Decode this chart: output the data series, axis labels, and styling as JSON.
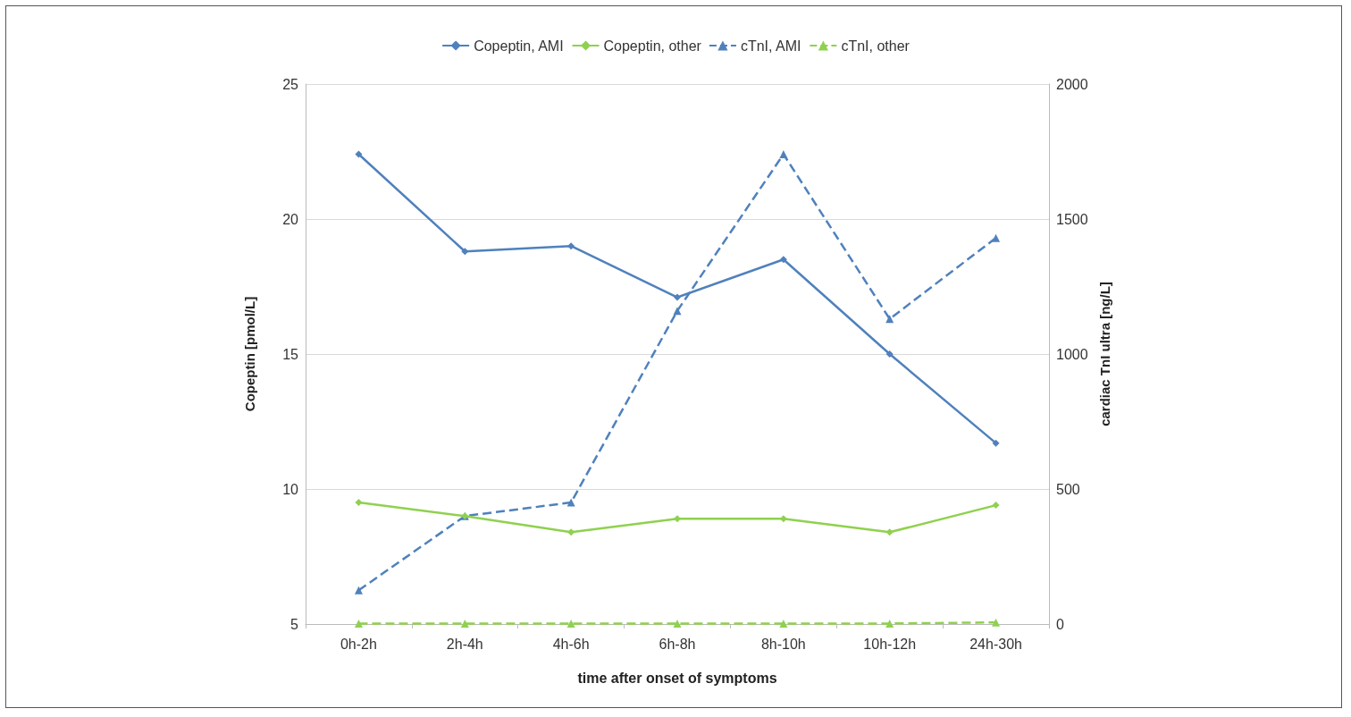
{
  "chart_data": {
    "type": "line",
    "xlabel": "time after onset of symptoms",
    "ylabel": "Copeptin [pmol/L]",
    "y2label": "cardiac TnI ultra [ng/L]",
    "categories": [
      "0h-2h",
      "2h-4h",
      "4h-6h",
      "6h-8h",
      "8h-10h",
      "10h-12h",
      "24h-30h"
    ],
    "series": [
      {
        "name": "Copeptin, AMI",
        "color": "#4f81bd",
        "marker": "diamond",
        "line_style": "solid",
        "values": [
          22.4,
          18.8,
          19.0,
          17.1,
          18.5,
          15.0,
          11.7
        ]
      },
      {
        "name": "Copeptin, other",
        "color": "#8fd14f",
        "marker": "diamond",
        "line_style": "solid",
        "values": [
          9.5,
          9.0,
          8.4,
          8.9,
          8.9,
          8.4,
          9.4
        ]
      },
      {
        "name": "cTnI, AMI",
        "color": "#4f81bd",
        "marker": "triangle",
        "line_style": "dashed",
        "axis": "y2",
        "values": [
          125,
          400,
          450,
          1160,
          1740,
          1130,
          1430
        ]
      },
      {
        "name": "cTnI, other",
        "color": "#8fd14f",
        "marker": "triangle",
        "line_style": "dashed",
        "axis": "y2",
        "values": [
          2,
          2,
          2,
          2,
          2,
          2,
          6
        ]
      }
    ],
    "ylim": [
      5,
      25
    ],
    "yticks": [
      5,
      10,
      15,
      20,
      25
    ],
    "y2lim": [
      0,
      2000
    ],
    "y2ticks": [
      0,
      500,
      1000,
      1500,
      2000
    ],
    "grid": "y",
    "legend": "top"
  }
}
